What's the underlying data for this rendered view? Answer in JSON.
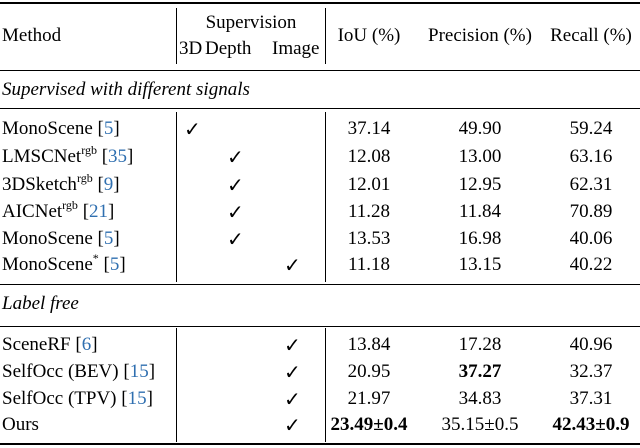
{
  "table": {
    "header": {
      "method": "Method",
      "supervision": "Supervision",
      "sup_3d": "3D",
      "sup_depth": "Depth",
      "sup_image": "Image",
      "iou": "IoU (%)",
      "precision": "Precision (%)",
      "recall": "Recall (%)"
    },
    "sections": [
      {
        "title": "Supervised with different signals",
        "rows": [
          {
            "name": "MonoScene",
            "sup": "",
            "ref": "5",
            "check": "3d",
            "iou": "37.14",
            "precision": "49.90",
            "recall": "59.24"
          },
          {
            "name": "LMSCNet",
            "sup": "rgb",
            "ref": "35",
            "check": "depth",
            "iou": "12.08",
            "precision": "13.00",
            "recall": "63.16"
          },
          {
            "name": "3DSketch",
            "sup": "rgb",
            "ref": "9",
            "check": "depth",
            "iou": "12.01",
            "precision": "12.95",
            "recall": "62.31"
          },
          {
            "name": "AICNet",
            "sup": "rgb",
            "ref": "21",
            "check": "depth",
            "iou": "11.28",
            "precision": "11.84",
            "recall": "70.89"
          },
          {
            "name": "MonoScene",
            "sup": "",
            "ref": "5",
            "check": "depth",
            "iou": "13.53",
            "precision": "16.98",
            "recall": "40.06"
          },
          {
            "name": "MonoScene",
            "sup": "*",
            "ref": "5",
            "check": "image",
            "iou": "11.18",
            "precision": "13.15",
            "recall": "40.22"
          }
        ]
      },
      {
        "title": "Label free",
        "rows": [
          {
            "name": "SceneRF",
            "sup": "",
            "ref": "6",
            "check": "image",
            "iou": "13.84",
            "precision": "17.28",
            "recall": "40.96"
          },
          {
            "name": "SelfOcc (BEV)",
            "sup": "",
            "ref": "15",
            "check": "image",
            "iou": "20.95",
            "precision": "37.27",
            "recall": "32.37"
          },
          {
            "name": "SelfOcc (TPV)",
            "sup": "",
            "ref": "15",
            "check": "image",
            "iou": "21.97",
            "precision": "34.83",
            "recall": "37.31"
          },
          {
            "name": "Ours",
            "sup": "",
            "ref": "",
            "check": "image",
            "iou": "23.49±0.4",
            "precision": "35.15±0.5",
            "recall": "42.43±0.9"
          }
        ]
      }
    ],
    "bold_cells": [
      "9.iou",
      "7.precision",
      "9.recall"
    ],
    "check_glyph": "✓",
    "ref_color": "#2f6fb0"
  }
}
